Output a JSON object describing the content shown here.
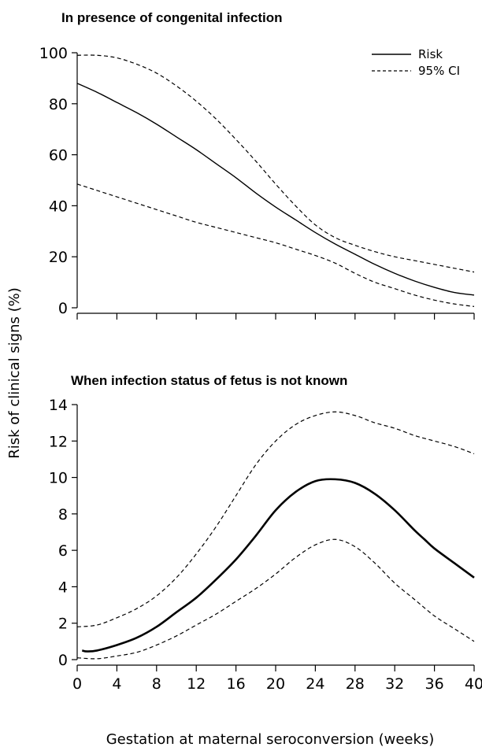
{
  "ylabel": "Risk of clinical signs (%)",
  "xlabel": "Gestation at maternal seroconversion (weeks)",
  "legend": {
    "risk": "Risk",
    "ci": "95% CI"
  },
  "chart_data": [
    {
      "type": "line",
      "title": "In presence of congenital infection",
      "ylabel": "Risk of clinical signs (%)",
      "ylim": [
        0,
        100
      ],
      "yticks": [
        "0",
        "20",
        "40",
        "60",
        "80",
        "100"
      ],
      "xlim": [
        0,
        40
      ],
      "x_tick_labels_shown": false,
      "legend_position": "top-right",
      "series": [
        {
          "name": "Risk",
          "style": "solid",
          "x": [
            0,
            2,
            4,
            6,
            8,
            10,
            12,
            14,
            16,
            18,
            20,
            22,
            24,
            26,
            28,
            30,
            32,
            34,
            36,
            38,
            40
          ],
          "y": [
            88,
            84.5,
            80.5,
            76.5,
            72,
            67,
            62,
            56.5,
            51,
            45,
            39.5,
            34.5,
            29.5,
            25,
            21,
            17,
            13.5,
            10.5,
            8,
            6,
            5
          ]
        },
        {
          "name": "95% CI",
          "style": "dashed",
          "x": [
            0,
            2,
            4,
            6,
            8,
            10,
            12,
            14,
            16,
            18,
            20,
            22,
            24,
            26,
            28,
            30,
            32,
            34,
            36,
            38,
            40
          ],
          "y": [
            99,
            99,
            98,
            95.5,
            92,
            87,
            81,
            74,
            66,
            57.5,
            48.5,
            40,
            32.5,
            27.5,
            24.5,
            22,
            20,
            18.5,
            17,
            15.5,
            14
          ]
        },
        {
          "style": "dashed",
          "x": [
            0,
            2,
            4,
            6,
            8,
            10,
            12,
            14,
            16,
            18,
            20,
            22,
            24,
            26,
            28,
            30,
            32,
            34,
            36,
            38,
            40
          ],
          "y": [
            48.5,
            46,
            43.5,
            41,
            38.5,
            36,
            33.5,
            31.5,
            29.5,
            27.5,
            25.5,
            23,
            20.5,
            17.5,
            13.5,
            10,
            7.5,
            5,
            3,
            1.5,
            0.5
          ]
        }
      ]
    },
    {
      "type": "line",
      "title": "When infection status of fetus is not known",
      "ylabel": "Risk of clinical signs (%)",
      "xlabel": "Gestation at maternal seroconversion (weeks)",
      "ylim": [
        0,
        14
      ],
      "yticks": [
        "0",
        "2",
        "4",
        "6",
        "8",
        "10",
        "12",
        "14"
      ],
      "xlim": [
        0,
        40
      ],
      "xticks": [
        "0",
        "4",
        "8",
        "12",
        "16",
        "20",
        "24",
        "28",
        "32",
        "36",
        "40"
      ],
      "series": [
        {
          "name": "Risk",
          "style": "solid-bold",
          "x": [
            0.5,
            1,
            2,
            4,
            6,
            8,
            10,
            12,
            14,
            16,
            18,
            20,
            22,
            24,
            26,
            28,
            30,
            32,
            34,
            35,
            36,
            38,
            40
          ],
          "y": [
            0.5,
            0.45,
            0.5,
            0.8,
            1.2,
            1.8,
            2.6,
            3.4,
            4.4,
            5.5,
            6.8,
            8.2,
            9.2,
            9.8,
            9.9,
            9.7,
            9.1,
            8.2,
            7.1,
            6.6,
            6.1,
            5.3,
            4.5
          ]
        },
        {
          "name": "95% CI",
          "style": "dashed",
          "x": [
            0,
            2,
            4,
            6,
            8,
            10,
            12,
            14,
            16,
            18,
            20,
            22,
            24,
            26,
            28,
            30,
            32,
            34,
            36,
            38,
            40
          ],
          "y": [
            1.8,
            1.9,
            2.3,
            2.8,
            3.5,
            4.5,
            5.8,
            7.3,
            9.0,
            10.7,
            12.0,
            12.9,
            13.4,
            13.6,
            13.4,
            13.0,
            12.7,
            12.3,
            12.0,
            11.7,
            11.3
          ]
        },
        {
          "style": "dashed",
          "x": [
            0,
            2,
            4,
            6,
            8,
            10,
            12,
            14,
            16,
            18,
            20,
            22,
            24,
            26,
            28,
            30,
            32,
            34,
            36,
            38,
            40
          ],
          "y": [
            0.1,
            0.05,
            0.2,
            0.4,
            0.8,
            1.3,
            1.9,
            2.5,
            3.2,
            3.9,
            4.7,
            5.6,
            6.3,
            6.6,
            6.2,
            5.3,
            4.2,
            3.3,
            2.4,
            1.7,
            1.0
          ]
        }
      ]
    }
  ]
}
